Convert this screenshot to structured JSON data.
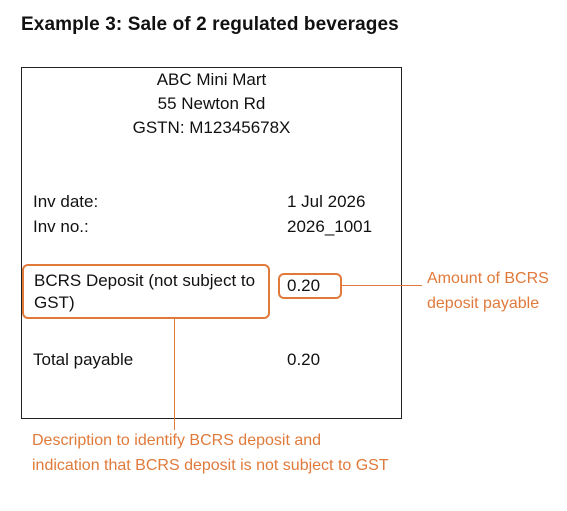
{
  "heading": "Example 3: Sale of 2 regulated beverages",
  "receipt": {
    "store_name": "ABC Mini Mart",
    "address": "55 Newton Rd",
    "gstn": "GSTN: M12345678X",
    "inv_date_label": "Inv date:",
    "inv_date_value": "1 Jul 2026",
    "inv_no_label": "Inv no.:",
    "inv_no_value": "2026_1001",
    "deposit_label": "BCRS Deposit (not subject to GST)",
    "deposit_value": "0.20",
    "total_label": "Total payable",
    "total_value": "0.20"
  },
  "annotations": {
    "amount_note": "Amount of BCRS deposit payable",
    "description_note": "Description to identify BCRS deposit and indication that BCRS deposit is not subject to GST",
    "accent_color": "#e07a3b"
  }
}
